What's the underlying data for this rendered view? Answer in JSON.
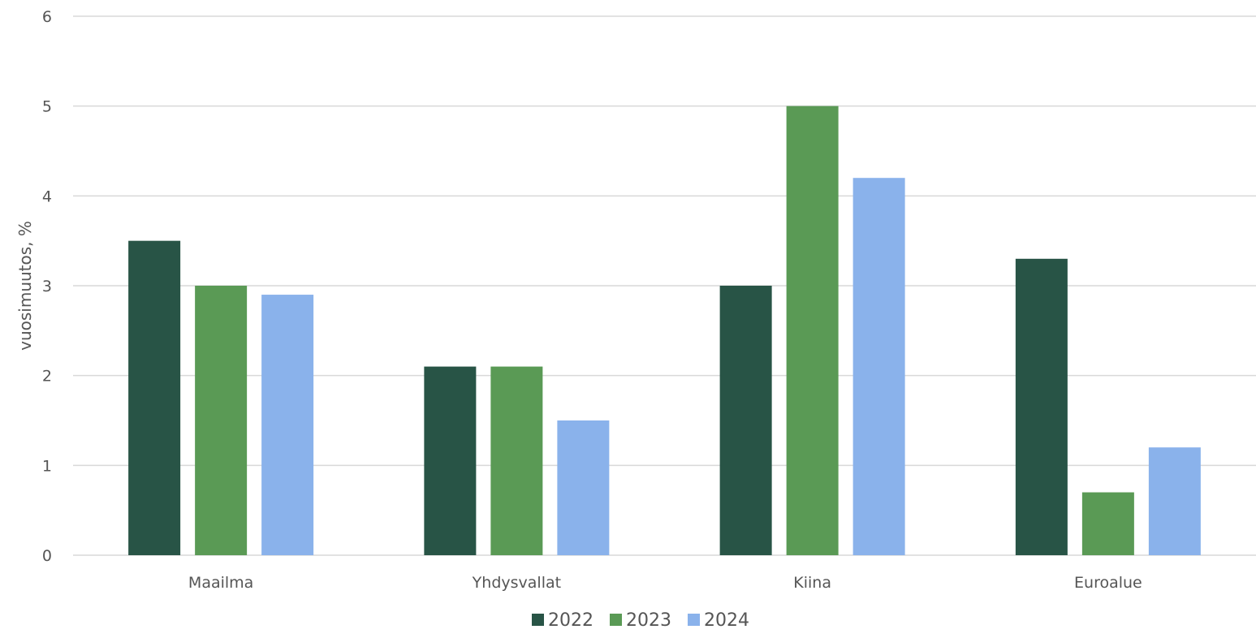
{
  "chart_data": {
    "type": "bar",
    "title": "",
    "xlabel": "",
    "ylabel": "vuosimuutos, %",
    "ylim": [
      0,
      6
    ],
    "yticks": [
      0,
      1,
      2,
      3,
      4,
      5,
      6
    ],
    "grid": true,
    "legend_position": "bottom",
    "categories": [
      "Maailma",
      "Yhdysvallat",
      "Kiina",
      "Euroalue"
    ],
    "series": [
      {
        "name": "2022",
        "color": "#285446",
        "values": [
          3.5,
          2.1,
          3.0,
          3.3
        ]
      },
      {
        "name": "2023",
        "color": "#5a9a55",
        "values": [
          3.0,
          2.1,
          5.0,
          0.7
        ]
      },
      {
        "name": "2024",
        "color": "#8ab2eb",
        "values": [
          2.9,
          1.5,
          4.2,
          1.2
        ]
      }
    ]
  }
}
